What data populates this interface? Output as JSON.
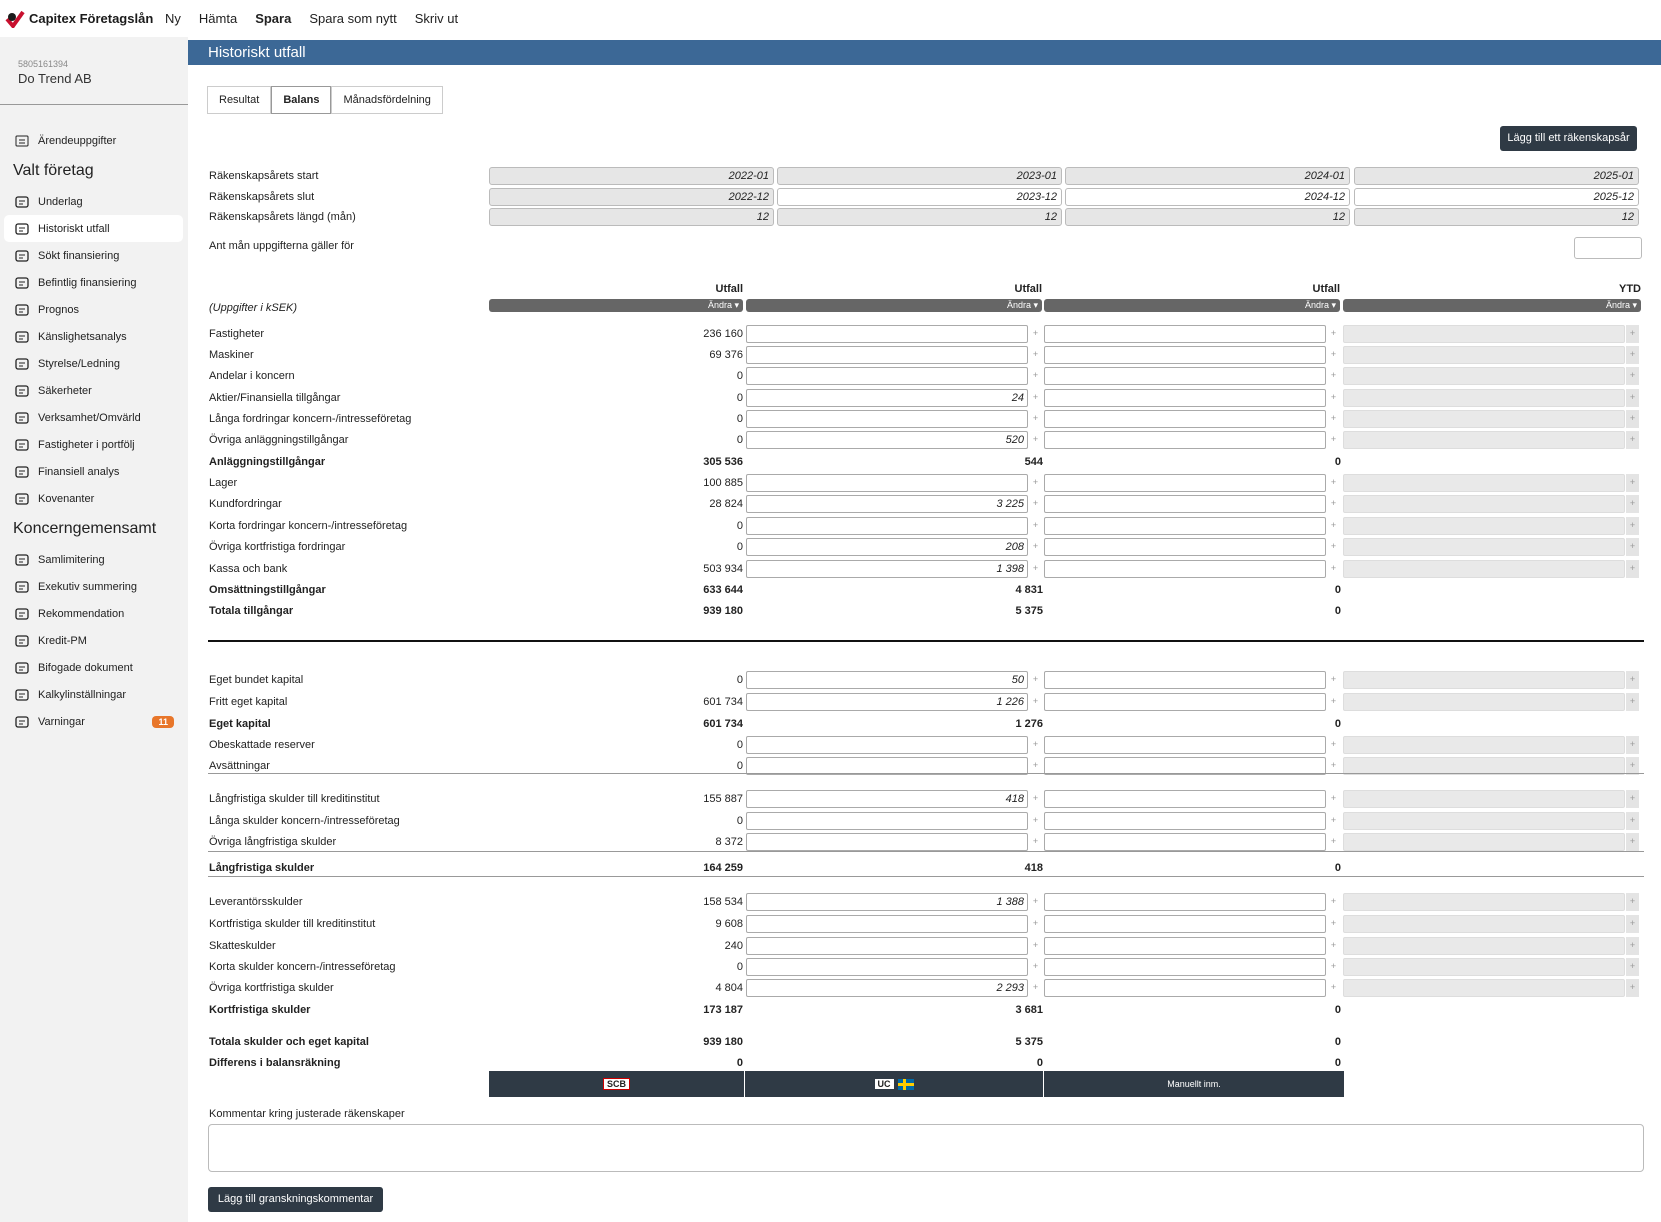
{
  "app": {
    "brand": "Capitex Företagslån",
    "menu": [
      "Ny",
      "Hämta",
      "Spara",
      "Spara som nytt",
      "Skriv ut"
    ]
  },
  "company": {
    "orgnr": "5805161394",
    "name": "Do Trend AB"
  },
  "sidebar": {
    "top_item": "Ärendeuppgifter",
    "section1": "Valt företag",
    "items1": [
      "Underlag",
      "Historiskt utfall",
      "Sökt finansiering",
      "Befintlig finansiering",
      "Prognos",
      "Känslighetsanalys",
      "Styrelse/Ledning",
      "Säkerheter",
      "Verksamhet/Omvärld",
      "Fastigheter i portfölj",
      "Finansiell analys",
      "Kovenanter"
    ],
    "section2": "Koncerngemensamt",
    "items2": [
      "Samlimitering",
      "Exekutiv summering",
      "Rekommendation",
      "Kredit-PM",
      "Bifogade dokument",
      "Kalkylinställningar",
      "Varningar"
    ],
    "warnings_badge": "11",
    "active_item": "Historiskt utfall"
  },
  "page": {
    "title": "Historiskt utfall",
    "tabs": [
      "Resultat",
      "Balans",
      "Månadsfördelning"
    ],
    "active_tab": "Balans",
    "add_year_button": "Lägg till ett räkenskapsår"
  },
  "years": {
    "start_label": "Räkenskapsårets start",
    "end_label": "Räkenskapsårets slut",
    "length_label": "Räkenskapsårets längd (mån)",
    "months_label": "Ant mån uppgifterna gäller för",
    "start": [
      "2022-01",
      "2023-01",
      "2024-01",
      "2025-01"
    ],
    "end": [
      "2022-12",
      "2023-12",
      "2024-12",
      "2025-12"
    ],
    "length": [
      "12",
      "12",
      "12",
      "12"
    ]
  },
  "columns": {
    "unit_note": "(Uppgifter i kSEK)",
    "headers": [
      "Utfall",
      "Utfall",
      "Utfall",
      "YTD"
    ],
    "change_label": "Ändra"
  },
  "rows": [
    {
      "label": "Fastigheter",
      "c0": "236 160",
      "c1": "",
      "c2": "",
      "type": "input"
    },
    {
      "label": "Maskiner",
      "c0": "69 376",
      "c1": "",
      "c2": "",
      "type": "input"
    },
    {
      "label": "Andelar i koncern",
      "c0": "0",
      "c1": "",
      "c2": "",
      "type": "input"
    },
    {
      "label": "Aktier/Finansiella tillgångar",
      "c0": "0",
      "c1": "24",
      "c2": "",
      "type": "input"
    },
    {
      "label": "Långa fordringar koncern-/intresseföretag",
      "c0": "0",
      "c1": "",
      "c2": "",
      "type": "input"
    },
    {
      "label": "Övriga anläggningstillgångar",
      "c0": "0",
      "c1": "520",
      "c2": "",
      "type": "input"
    },
    {
      "label": "Anläggningstillgångar",
      "c0": "305 536",
      "c1": "544",
      "c2": "0",
      "type": "sum"
    },
    {
      "label": "Lager",
      "c0": "100 885",
      "c1": "",
      "c2": "",
      "type": "input"
    },
    {
      "label": "Kundfordringar",
      "c0": "28 824",
      "c1": "3 225",
      "c2": "",
      "type": "input"
    },
    {
      "label": "Korta fordringar koncern-/intresseföretag",
      "c0": "0",
      "c1": "",
      "c2": "",
      "type": "input"
    },
    {
      "label": "Övriga kortfristiga fordringar",
      "c0": "0",
      "c1": "208",
      "c2": "",
      "type": "input"
    },
    {
      "label": "Kassa och bank",
      "c0": "503 934",
      "c1": "1 398",
      "c2": "",
      "type": "input"
    },
    {
      "label": "Omsättningstillgångar",
      "c0": "633 644",
      "c1": "4 831",
      "c2": "0",
      "type": "sum"
    },
    {
      "label": "Totala tillgångar",
      "c0": "939 180",
      "c1": "5 375",
      "c2": "0",
      "type": "sum"
    },
    {
      "label": "Eget bundet kapital",
      "c0": "0",
      "c1": "50",
      "c2": "",
      "type": "input"
    },
    {
      "label": "Fritt eget kapital",
      "c0": "601 734",
      "c1": "1 226",
      "c2": "",
      "type": "input"
    },
    {
      "label": "Eget kapital",
      "c0": "601 734",
      "c1": "1 276",
      "c2": "0",
      "type": "sum"
    },
    {
      "label": "Obeskattade reserver",
      "c0": "0",
      "c1": "",
      "c2": "",
      "type": "input"
    },
    {
      "label": "Avsättningar",
      "c0": "0",
      "c1": "",
      "c2": "",
      "type": "input"
    },
    {
      "label": "Långfristiga skulder till kreditinstitut",
      "c0": "155 887",
      "c1": "418",
      "c2": "",
      "type": "input"
    },
    {
      "label": "Långa skulder koncern-/intresseföretag",
      "c0": "0",
      "c1": "",
      "c2": "",
      "type": "input"
    },
    {
      "label": "Övriga långfristiga skulder",
      "c0": "8 372",
      "c1": "",
      "c2": "",
      "type": "input"
    },
    {
      "label": "Långfristiga skulder",
      "c0": "164 259",
      "c1": "418",
      "c2": "0",
      "type": "sum"
    },
    {
      "label": "Leverantörsskulder",
      "c0": "158 534",
      "c1": "1 388",
      "c2": "",
      "type": "input"
    },
    {
      "label": "Kortfristiga skulder till kreditinstitut",
      "c0": "9 608",
      "c1": "",
      "c2": "",
      "type": "input"
    },
    {
      "label": "Skatteskulder",
      "c0": "240",
      "c1": "",
      "c2": "",
      "type": "input"
    },
    {
      "label": "Korta skulder koncern-/intresseföretag",
      "c0": "0",
      "c1": "",
      "c2": "",
      "type": "input"
    },
    {
      "label": "Övriga kortfristiga skulder",
      "c0": "4 804",
      "c1": "2 293",
      "c2": "",
      "type": "input"
    },
    {
      "label": "Kortfristiga skulder",
      "c0": "173 187",
      "c1": "3 681",
      "c2": "0",
      "type": "sum"
    },
    {
      "label": "Totala skulder och eget kapital",
      "c0": "939 180",
      "c1": "5 375",
      "c2": "0",
      "type": "sum"
    },
    {
      "label": "Differens i balansräkning",
      "c0": "0",
      "c1": "0",
      "c2": "0",
      "type": "sum"
    }
  ],
  "sources": {
    "s1": "SCB",
    "s2": "UC",
    "s3": "Manuellt inm."
  },
  "comment": {
    "label": "Kommentar kring justerade räkenskaper",
    "button": "Lägg till granskningskommentar"
  },
  "colors": {
    "header_bg": "#3c6896",
    "button_bg": "#2f3a45",
    "badge": "#e8762a"
  }
}
